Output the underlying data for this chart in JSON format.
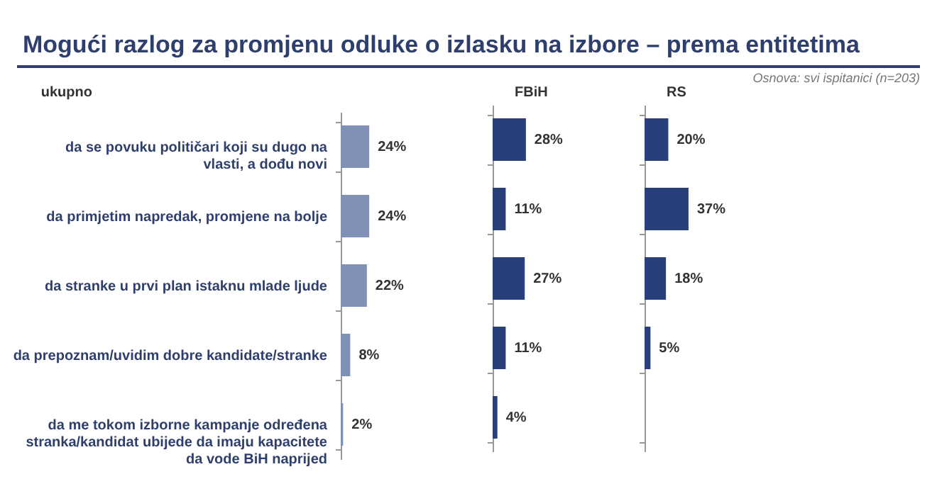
{
  "chart_data": [
    {
      "type": "bar",
      "orientation": "horizontal",
      "title": "Mogući razlog za promjenu odluke o izlasku na izbore – prema entitetima",
      "subtitle": "ukupno",
      "annotations": [
        "Osnova: svi ispitanici (n=203)"
      ],
      "categories": [
        "da se povuku političari koji su dugo na vlasti, a dođu novi",
        "da primjetim napredak, promjene na bolje",
        "da stranke u prvi plan istaknu mlade ljude",
        "da prepoznam/uvidim dobre kandidate/stranke",
        "da me tokom izborne kampanje određena stranka/kandidat ubijede da imaju kapacitete da vode BiH naprijed"
      ],
      "values": [
        24,
        24,
        22,
        8,
        2
      ],
      "value_labels": [
        "24%",
        "24%",
        "22%",
        "8%",
        "2%"
      ],
      "color": "#8091b5",
      "tick_labels": "y"
    },
    {
      "type": "bar",
      "orientation": "horizontal",
      "subtitle": "FBiH",
      "values": [
        28,
        11,
        27,
        11,
        4
      ],
      "value_labels": [
        "28%",
        "11%",
        "27%",
        "11%",
        "4%"
      ],
      "color": "#283f7a",
      "tick_labels": false
    },
    {
      "type": "bar",
      "orientation": "horizontal",
      "subtitle": "RS",
      "values": [
        20,
        37,
        18,
        5,
        null
      ],
      "value_labels": [
        "20%",
        "37%",
        "18%",
        "5%",
        null
      ],
      "color": "#283f7a",
      "tick_labels": false
    }
  ]
}
